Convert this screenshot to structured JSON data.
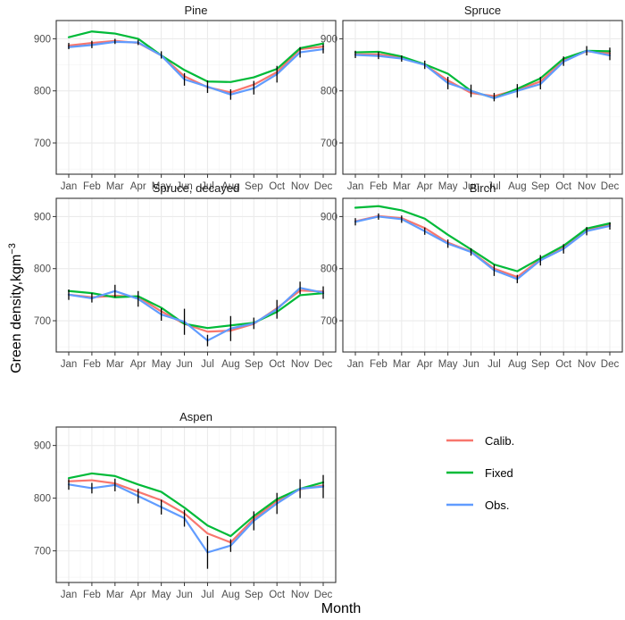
{
  "colors": {
    "panel_bg": "#ffffff",
    "grid": "#ebebeb",
    "border": "#333333",
    "errorbar": "#000000"
  },
  "chart_data": {
    "type": "line",
    "xlabel": "Month",
    "ylabel": "Green density,kgm",
    "ylabel_sup": "−3",
    "x": [
      "Jan",
      "Feb",
      "Mar",
      "Apr",
      "May",
      "Jun",
      "Jul",
      "Aug",
      "Sep",
      "Oct",
      "Nov",
      "Dec"
    ],
    "ylim": [
      640,
      935
    ],
    "yticks": [
      700,
      800,
      900
    ],
    "grid": true,
    "legend_position": "right",
    "series_styles": [
      {
        "name": "Calib.",
        "color": "#F8766D"
      },
      {
        "name": "Fixed",
        "color": "#00BA38"
      },
      {
        "name": "Obs.",
        "color": "#619CFF"
      }
    ],
    "panels": [
      {
        "title": "Pine",
        "series": [
          {
            "name": "Calib.",
            "values": [
              887,
              892,
              896,
              892,
              868,
              828,
              807,
              797,
              812,
              836,
              880,
              885
            ]
          },
          {
            "name": "Fixed",
            "values": [
              903,
              914,
              910,
              900,
              868,
              840,
              818,
              817,
              826,
              842,
              882,
              891
            ]
          },
          {
            "name": "Obs.",
            "values": [
              884,
              888,
              894,
              893,
              868,
              822,
              808,
              793,
              805,
              832,
              874,
              880
            ]
          }
        ],
        "errorbars": [
          [
            880,
            892
          ],
          [
            882,
            896
          ],
          [
            890,
            900
          ],
          [
            888,
            898
          ],
          [
            862,
            876
          ],
          [
            810,
            834
          ],
          [
            796,
            820
          ],
          [
            783,
            803
          ],
          [
            793,
            819
          ],
          [
            816,
            848
          ],
          [
            864,
            884
          ],
          [
            872,
            890
          ]
        ]
      },
      {
        "title": "Spruce",
        "series": [
          {
            "name": "Calib.",
            "values": [
              870,
              870,
              864,
              850,
              820,
              796,
              790,
              802,
              818,
              858,
              876,
              872
            ]
          },
          {
            "name": "Fixed",
            "values": [
              874,
              875,
              866,
              851,
              833,
              800,
              786,
              804,
              824,
              862,
              877,
              876
            ]
          },
          {
            "name": "Obs.",
            "values": [
              869,
              867,
              862,
              850,
              815,
              800,
              786,
              800,
              813,
              856,
              877,
              868
            ]
          }
        ],
        "errorbars": [
          [
            863,
            877
          ],
          [
            861,
            875
          ],
          [
            856,
            868
          ],
          [
            842,
            858
          ],
          [
            803,
            827
          ],
          [
            788,
            812
          ],
          [
            780,
            796
          ],
          [
            787,
            813
          ],
          [
            803,
            827
          ],
          [
            848,
            866
          ],
          [
            868,
            886
          ],
          [
            859,
            883
          ]
        ]
      },
      {
        "title": "Spruce, decayed",
        "series": [
          {
            "name": "Calib.",
            "values": [
              750,
              745,
              748,
              746,
              718,
              694,
              679,
              681,
              694,
              724,
              758,
              756
            ]
          },
          {
            "name": "Fixed",
            "values": [
              757,
              753,
              745,
              747,
              725,
              694,
              686,
              691,
              696,
              717,
              749,
              753
            ]
          },
          {
            "name": "Obs.",
            "values": [
              750,
              743,
              757,
              742,
              712,
              698,
              662,
              685,
              695,
              722,
              763,
              754
            ]
          }
        ],
        "errorbars": [
          [
            740,
            760
          ],
          [
            735,
            753
          ],
          [
            745,
            769
          ],
          [
            727,
            757
          ],
          [
            700,
            724
          ],
          [
            673,
            723
          ],
          [
            651,
            673
          ],
          [
            661,
            709
          ],
          [
            684,
            706
          ],
          [
            704,
            740
          ],
          [
            751,
            775
          ],
          [
            742,
            766
          ]
        ]
      },
      {
        "title": "Birch",
        "series": [
          {
            "name": "Calib.",
            "values": [
              891,
              901,
              897,
              878,
              850,
              833,
              800,
              784,
              818,
              842,
              875,
              885
            ]
          },
          {
            "name": "Fixed",
            "values": [
              917,
              920,
              912,
              896,
              865,
              837,
              808,
              795,
              820,
              844,
              877,
              887
            ]
          },
          {
            "name": "Obs.",
            "values": [
              890,
              900,
              895,
              872,
              848,
              832,
              797,
              780,
              816,
              838,
              872,
              882
            ]
          }
        ],
        "errorbars": [
          [
            883,
            897
          ],
          [
            894,
            906
          ],
          [
            888,
            902
          ],
          [
            865,
            879
          ],
          [
            840,
            856
          ],
          [
            825,
            839
          ],
          [
            786,
            808
          ],
          [
            772,
            788
          ],
          [
            806,
            826
          ],
          [
            829,
            847
          ],
          [
            864,
            880
          ],
          [
            875,
            889
          ]
        ]
      },
      {
        "title": "Aspen",
        "series": [
          {
            "name": "Calib.",
            "values": [
              832,
              834,
              828,
              812,
              796,
              771,
              733,
              716,
              761,
              795,
              817,
              824
            ]
          },
          {
            "name": "Fixed",
            "values": [
              838,
              847,
              842,
              826,
              812,
              782,
              748,
              728,
              766,
              798,
              818,
              830
            ]
          },
          {
            "name": "Obs.",
            "values": [
              826,
              819,
              825,
              804,
              783,
              762,
              697,
              710,
              757,
              790,
              818,
              822
            ]
          }
        ],
        "errorbars": [
          [
            816,
            836
          ],
          [
            809,
            829
          ],
          [
            813,
            837
          ],
          [
            790,
            818
          ],
          [
            769,
            797
          ],
          [
            746,
            778
          ],
          [
            666,
            728
          ],
          [
            698,
            722
          ],
          [
            739,
            775
          ],
          [
            770,
            810
          ],
          [
            800,
            836
          ],
          [
            800,
            844
          ]
        ]
      }
    ]
  }
}
